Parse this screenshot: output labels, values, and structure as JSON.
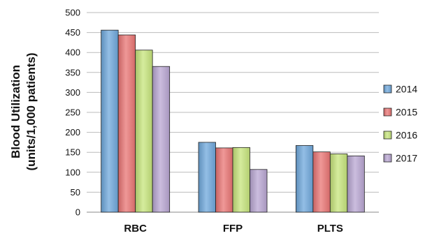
{
  "chart_data": {
    "type": "bar",
    "title": "",
    "xlabel": "",
    "ylabel_line1": "Blood Utilization",
    "ylabel_line2": "(units/1,000 patients)",
    "ylim": [
      0,
      500
    ],
    "yticks": [
      0,
      50,
      100,
      150,
      200,
      250,
      300,
      350,
      400,
      450,
      500
    ],
    "grid": true,
    "legend_position": "right",
    "categories": [
      "RBC",
      "FFP",
      "PLTS"
    ],
    "series": [
      {
        "name": "2014",
        "color": "#6fa8dc",
        "values": [
          456,
          175,
          167
        ]
      },
      {
        "name": "2015",
        "color": "#ea7574",
        "values": [
          444,
          161,
          151
        ]
      },
      {
        "name": "2016",
        "color": "#c7e57c",
        "values": [
          406,
          162,
          146
        ]
      },
      {
        "name": "2017",
        "color": "#b9a7d3",
        "values": [
          365,
          107,
          141
        ]
      }
    ]
  }
}
